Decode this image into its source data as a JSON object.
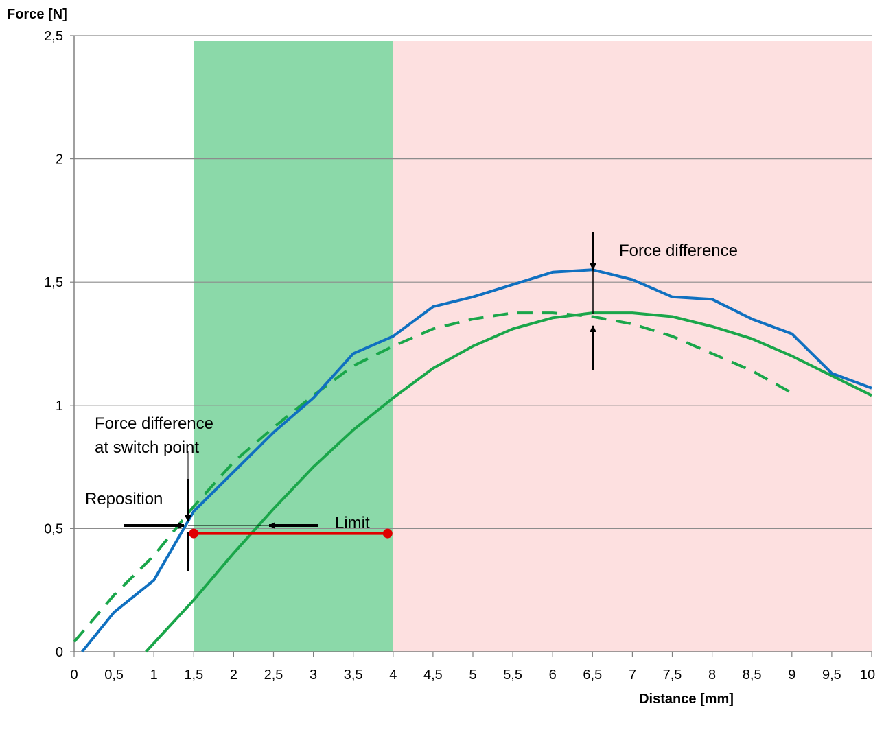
{
  "chart_data": {
    "type": "line",
    "title": "",
    "xlabel": "Distance  [mm]",
    "ylabel": "Force  [N]",
    "xlim": [
      0,
      10
    ],
    "ylim": [
      0,
      2.5
    ],
    "x_ticks": [
      "0",
      "0,5",
      "1",
      "1,5",
      "2",
      "2,5",
      "3",
      "3,5",
      "4",
      "4,5",
      "5",
      "5,5",
      "6",
      "6,5",
      "7",
      "7,5",
      "8",
      "8,5",
      "9",
      "9,5",
      "10"
    ],
    "y_ticks": [
      {
        "value": 0,
        "label": "0"
      },
      {
        "value": 0.5,
        "label": "0,5"
      },
      {
        "value": 1,
        "label": "1"
      },
      {
        "value": 1.5,
        "label": "1,5"
      },
      {
        "value": 2,
        "label": "2"
      },
      {
        "value": 2.5,
        "label": "2,5"
      }
    ],
    "grid": "horizontal",
    "regions": [
      {
        "x0": 1.5,
        "x1": 4,
        "color": "#8bd9a9"
      },
      {
        "x0": 4,
        "x1": 10,
        "color": "#fde0e0"
      }
    ],
    "series": [
      {
        "color": "#1070c0",
        "style": "solid",
        "points": [
          [
            0.1,
            0
          ],
          [
            0.5,
            0.16
          ],
          [
            1,
            0.29
          ],
          [
            1.5,
            0.57
          ],
          [
            2,
            0.73
          ],
          [
            2.5,
            0.89
          ],
          [
            3,
            1.03
          ],
          [
            3.5,
            1.21
          ],
          [
            4,
            1.28
          ],
          [
            4.5,
            1.4
          ],
          [
            5,
            1.44
          ],
          [
            5.5,
            1.49
          ],
          [
            6,
            1.54
          ],
          [
            6.5,
            1.55
          ],
          [
            7,
            1.51
          ],
          [
            7.5,
            1.44
          ],
          [
            8,
            1.43
          ],
          [
            8.5,
            1.35
          ],
          [
            9,
            1.29
          ],
          [
            9.5,
            1.13
          ],
          [
            10,
            1.07
          ]
        ]
      },
      {
        "color": "#1aa64a",
        "style": "dashed",
        "points": [
          [
            0,
            0.04
          ],
          [
            0.5,
            0.23
          ],
          [
            1,
            0.39
          ],
          [
            1.5,
            0.59
          ],
          [
            2,
            0.77
          ],
          [
            2.5,
            0.91
          ],
          [
            3,
            1.04
          ],
          [
            3.5,
            1.16
          ],
          [
            4,
            1.24
          ],
          [
            4.5,
            1.31
          ],
          [
            5,
            1.35
          ],
          [
            5.5,
            1.375
          ],
          [
            6,
            1.375
          ],
          [
            6.5,
            1.36
          ],
          [
            7,
            1.33
          ],
          [
            7.5,
            1.28
          ],
          [
            8,
            1.21
          ],
          [
            8.5,
            1.14
          ],
          [
            9,
            1.05
          ]
        ]
      },
      {
        "color": "#1aa64a",
        "style": "solid",
        "points": [
          [
            0.9,
            0
          ],
          [
            1.5,
            0.21
          ],
          [
            2,
            0.4
          ],
          [
            2.5,
            0.58
          ],
          [
            3,
            0.75
          ],
          [
            3.5,
            0.9
          ],
          [
            4,
            1.03
          ],
          [
            4.5,
            1.15
          ],
          [
            5,
            1.24
          ],
          [
            5.5,
            1.31
          ],
          [
            6,
            1.355
          ],
          [
            6.5,
            1.375
          ],
          [
            7,
            1.375
          ],
          [
            7.5,
            1.36
          ],
          [
            8,
            1.32
          ],
          [
            8.5,
            1.27
          ],
          [
            9,
            1.2
          ],
          [
            9.5,
            1.12
          ],
          [
            10,
            1.04
          ]
        ]
      }
    ],
    "limit": {
      "label": "Limit",
      "x0": 1.5,
      "x1": 4,
      "y": 0.48,
      "color": "#e00000"
    },
    "annotations": [
      {
        "text": "Force difference"
      },
      {
        "text": "Force difference"
      },
      {
        "text": "at switch point"
      },
      {
        "text": "Reposition"
      }
    ]
  }
}
